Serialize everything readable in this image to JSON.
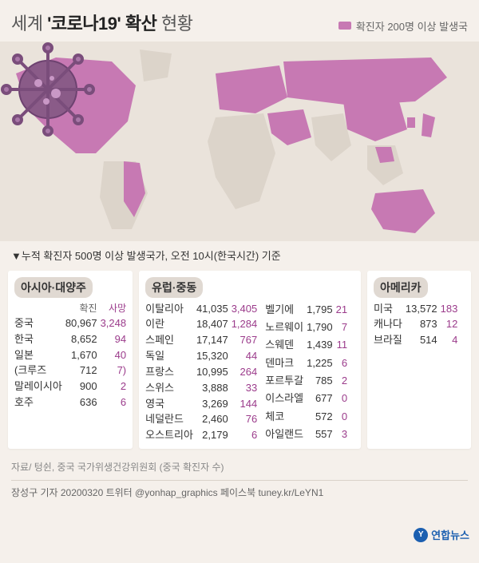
{
  "colors": {
    "highlight": "#c779b3",
    "land": "#dcd4ca",
    "sea": "#eae3db",
    "deaths": "#9b3b8b",
    "panel_bg": "#ffffff",
    "page_bg": "#f5f0eb",
    "brand": "#1b5fb0"
  },
  "title": {
    "prefix": "세계",
    "quoted": "'코로나19'",
    "mid": "확산",
    "suffix": "현황"
  },
  "legend_label": "확진자 200명 이상 발생국",
  "note": "▼누적 확진자 500명 이상 발생국가, 오전 10시(한국시간) 기준",
  "headers": {
    "cases": "확진",
    "deaths": "사망"
  },
  "regions": {
    "asia": {
      "title": "아시아·대양주",
      "rows": [
        {
          "name": "중국",
          "cases": "80,967",
          "deaths": "3,248"
        },
        {
          "name": "한국",
          "cases": "8,652",
          "deaths": "94"
        },
        {
          "name": "일본",
          "cases": "1,670",
          "deaths": "40"
        },
        {
          "name": "(크루즈",
          "cases": "712",
          "deaths": "7)"
        },
        {
          "name": "말레이시아",
          "cases": "900",
          "deaths": "2"
        },
        {
          "name": "호주",
          "cases": "636",
          "deaths": "6"
        }
      ]
    },
    "eumea": {
      "title": "유럽·중동",
      "left": [
        {
          "name": "이탈리아",
          "cases": "41,035",
          "deaths": "3,405"
        },
        {
          "name": "이란",
          "cases": "18,407",
          "deaths": "1,284"
        },
        {
          "name": "스페인",
          "cases": "17,147",
          "deaths": "767"
        },
        {
          "name": "독일",
          "cases": "15,320",
          "deaths": "44"
        },
        {
          "name": "프랑스",
          "cases": "10,995",
          "deaths": "264"
        },
        {
          "name": "스위스",
          "cases": "3,888",
          "deaths": "33"
        },
        {
          "name": "영국",
          "cases": "3,269",
          "deaths": "144"
        },
        {
          "name": "네덜란드",
          "cases": "2,460",
          "deaths": "76"
        },
        {
          "name": "오스트리아",
          "cases": "2,179",
          "deaths": "6"
        }
      ],
      "right": [
        {
          "name": "벨기에",
          "cases": "1,795",
          "deaths": "21"
        },
        {
          "name": "노르웨이",
          "cases": "1,790",
          "deaths": "7"
        },
        {
          "name": "스웨덴",
          "cases": "1,439",
          "deaths": "11"
        },
        {
          "name": "덴마크",
          "cases": "1,225",
          "deaths": "6"
        },
        {
          "name": "포르투갈",
          "cases": "785",
          "deaths": "2"
        },
        {
          "name": "이스라엘",
          "cases": "677",
          "deaths": "0"
        },
        {
          "name": "체코",
          "cases": "572",
          "deaths": "0"
        },
        {
          "name": "아일랜드",
          "cases": "557",
          "deaths": "3"
        }
      ]
    },
    "america": {
      "title": "아메리카",
      "rows": [
        {
          "name": "미국",
          "cases": "13,572",
          "deaths": "183"
        },
        {
          "name": "캐나다",
          "cases": "873",
          "deaths": "12"
        },
        {
          "name": "브라질",
          "cases": "514",
          "deaths": "4"
        }
      ]
    }
  },
  "source": "자료/ 텅쉰, 중국 국가위생건강위원회 (중국 확진자 수)",
  "brand": "연합뉴스",
  "byline": "장성구 기자  20200320 트위터 @yonhap_graphics  페이스북 tuney.kr/LeYN1"
}
